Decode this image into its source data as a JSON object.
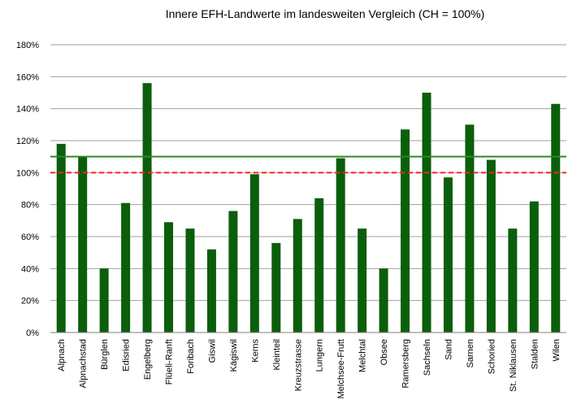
{
  "chart_data": {
    "type": "bar",
    "title": "Innere EFH-Landwerte im landesweiten Vergleich (CH = 100%)",
    "categories": [
      "Alpnach",
      "Alpnachstad",
      "Bürglen",
      "Edisried",
      "Engelberg",
      "Flüeli-Ranft",
      "Foribach",
      "Giswil",
      "Kägiswil",
      "Kerns",
      "Kleinteil",
      "Kreuzstrasse",
      "Lungern",
      "Melchsee-Frutt",
      "Melchtal",
      "Obsee",
      "Ramersberg",
      "Sachseln",
      "Sand",
      "Sarnen",
      "Schoried",
      "St. Niklausen",
      "Stalden",
      "Wilen"
    ],
    "values": [
      118,
      110,
      40,
      81,
      156,
      69,
      65,
      52,
      76,
      99,
      56,
      71,
      84,
      109,
      65,
      40,
      127,
      150,
      97,
      130,
      108,
      65,
      82,
      143
    ],
    "color": "#0b5e0b",
    "ylim": [
      0,
      180
    ],
    "yticks": [
      {
        "value": 0,
        "label": "0%"
      },
      {
        "value": 20,
        "label": "20%"
      },
      {
        "value": 40,
        "label": "40%"
      },
      {
        "value": 60,
        "label": "60%"
      },
      {
        "value": 80,
        "label": "80%"
      },
      {
        "value": 100,
        "label": "100%"
      },
      {
        "value": 120,
        "label": "120%"
      },
      {
        "value": 140,
        "label": "140%"
      },
      {
        "value": 160,
        "label": "160%"
      },
      {
        "value": 180,
        "label": "180%"
      }
    ],
    "grid": true,
    "reference_lines": [
      {
        "value": 110,
        "color": "#2e8b1e",
        "style": "solid"
      },
      {
        "value": 100,
        "color": "#ff2020",
        "style": "dashed"
      }
    ]
  }
}
